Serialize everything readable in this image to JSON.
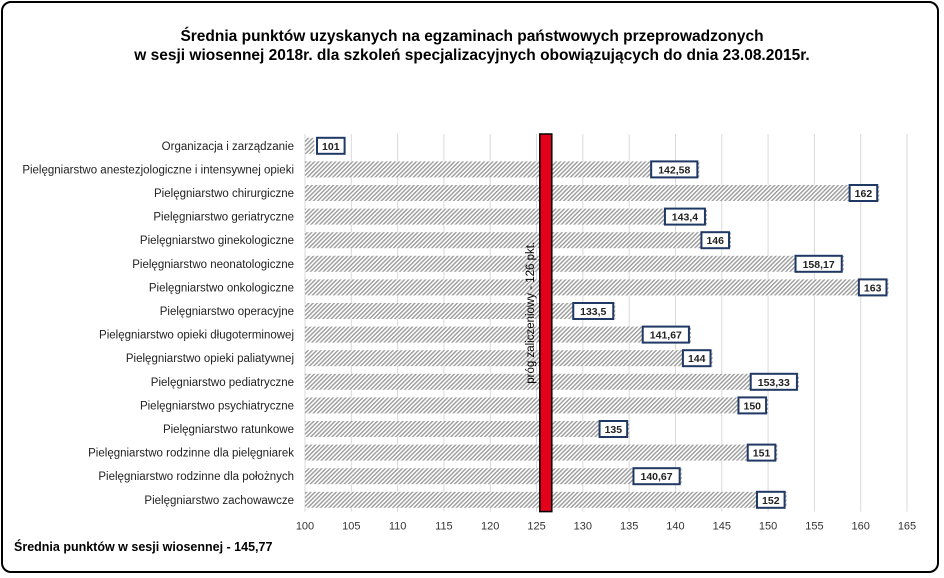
{
  "title_line1": "Średnia punktów uzyskanych na egzaminach  państwowych  przeprowadzonych",
  "title_line2": "w sesji  wiosennej 2018r. dla szkoleń specjalizacyjnych obowiązujących do dnia 23.08.2015r.",
  "footer": "Średnia punktów w sesji wiosennej  - 145,77",
  "colors": {
    "bar_stripe": "#9a9a9a",
    "threshold_fill": "#e2001a",
    "threshold_border": "#000000",
    "gridline": "#d9d9d9",
    "label_border": "#1f3864"
  },
  "chart_data": {
    "type": "bar",
    "orientation": "horizontal",
    "categories": [
      "Organizacja i zarządzanie",
      "Pielęgniarstwo anestezjologiczne i intensywnej opieki",
      "Pielęgniarstwo chirurgiczne",
      "Pielęgniarstwo geriatryczne",
      "Pielęgniarstwo ginekologiczne",
      "Pielęgniarstwo neonatologiczne",
      "Pielęgniarstwo onkologiczne",
      "Pielęgniarstwo operacyjne",
      "Pielęgniarstwo opieki długoterminowej",
      "Pielęgniarstwo opieki paliatywnej",
      "Pielęgniarstwo pediatryczne",
      "Pielęgniarstwo psychiatryczne",
      "Pielęgniarstwo ratunkowe",
      "Pielęgniarstwo rodzinne dla pielęgniarek",
      "Pielęgniarstwo rodzinne dla położnych",
      "Pielęgniarstwo zachowawcze"
    ],
    "values": [
      101,
      142.58,
      162,
      143.4,
      146,
      158.17,
      163,
      133.5,
      141.67,
      144,
      153.33,
      150,
      135,
      151,
      140.67,
      152
    ],
    "value_labels": [
      "101",
      "142,58",
      "162",
      "143,4",
      "146",
      "158,17",
      "163",
      "133,5",
      "141,67",
      "144",
      "153,33",
      "150",
      "135",
      "151",
      "140,67",
      "152"
    ],
    "xlim": [
      100,
      165
    ],
    "xticks": [
      "100",
      "105",
      "110",
      "115",
      "120",
      "125",
      "130",
      "135",
      "140",
      "145",
      "150",
      "155",
      "160",
      "165"
    ],
    "grid": true,
    "threshold": {
      "value": 126,
      "label": "próg zaliczeniowy - 126 pkt."
    }
  }
}
